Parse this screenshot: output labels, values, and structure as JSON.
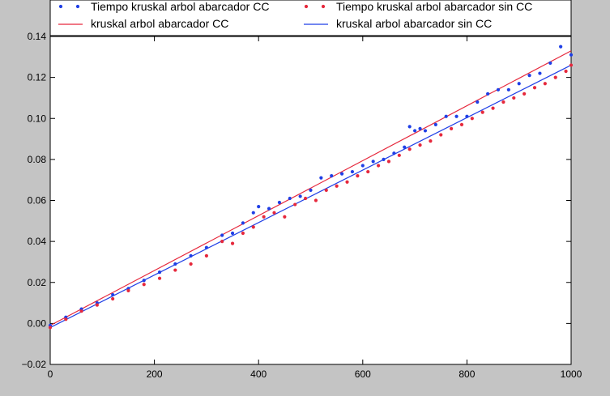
{
  "chart_data": {
    "type": "scatter",
    "xlim": [
      0,
      1000
    ],
    "ylim": [
      -0.02,
      0.14
    ],
    "x_ticks": [
      0,
      200,
      400,
      600,
      800,
      1000
    ],
    "y_ticks": [
      -0.02,
      0.0,
      0.02,
      0.04,
      0.06,
      0.08,
      0.1,
      0.12,
      0.14
    ],
    "x_tick_labels": [
      "0",
      "200",
      "400",
      "600",
      "800",
      "1000"
    ],
    "y_tick_labels": [
      "−0.02",
      "0.00",
      "0.02",
      "0.04",
      "0.06",
      "0.08",
      "0.10",
      "0.12",
      "0.14"
    ],
    "grid": false,
    "legend_position": "top",
    "series": [
      {
        "name": "Tiempo kruskal arbol abarcador CC",
        "kind": "points",
        "color": "#1f3fe6",
        "x": [
          0,
          30,
          60,
          90,
          120,
          150,
          180,
          210,
          240,
          270,
          300,
          330,
          350,
          370,
          390,
          400,
          420,
          440,
          460,
          480,
          500,
          520,
          540,
          560,
          580,
          600,
          620,
          640,
          660,
          680,
          690,
          700,
          710,
          720,
          740,
          760,
          780,
          800,
          820,
          840,
          860,
          880,
          900,
          920,
          940,
          960,
          980,
          1000
        ],
        "y": [
          -0.001,
          0.003,
          0.007,
          0.01,
          0.014,
          0.017,
          0.021,
          0.025,
          0.029,
          0.033,
          0.037,
          0.043,
          0.044,
          0.049,
          0.054,
          0.057,
          0.056,
          0.059,
          0.061,
          0.062,
          0.065,
          0.071,
          0.072,
          0.073,
          0.074,
          0.077,
          0.079,
          0.08,
          0.083,
          0.086,
          0.096,
          0.094,
          0.095,
          0.094,
          0.097,
          0.101,
          0.101,
          0.101,
          0.108,
          0.112,
          0.114,
          0.114,
          0.117,
          0.121,
          0.122,
          0.127,
          0.135,
          0.131
        ]
      },
      {
        "name": "Tiempo kruskal arbol abarcador sin CC",
        "kind": "points",
        "color": "#e6283c",
        "x": [
          0,
          30,
          60,
          90,
          120,
          150,
          180,
          210,
          240,
          270,
          300,
          330,
          350,
          370,
          390,
          410,
          430,
          450,
          470,
          490,
          510,
          530,
          550,
          570,
          590,
          610,
          630,
          650,
          670,
          690,
          710,
          730,
          750,
          770,
          790,
          810,
          830,
          850,
          870,
          890,
          910,
          930,
          950,
          970,
          990,
          1000
        ],
        "y": [
          -0.002,
          0.002,
          0.006,
          0.009,
          0.012,
          0.016,
          0.019,
          0.022,
          0.026,
          0.029,
          0.033,
          0.04,
          0.039,
          0.044,
          0.047,
          0.052,
          0.054,
          0.052,
          0.058,
          0.061,
          0.06,
          0.065,
          0.067,
          0.069,
          0.072,
          0.074,
          0.077,
          0.079,
          0.082,
          0.085,
          0.087,
          0.089,
          0.092,
          0.095,
          0.097,
          0.1,
          0.103,
          0.105,
          0.108,
          0.11,
          0.112,
          0.115,
          0.117,
          0.12,
          0.123,
          0.126
        ]
      },
      {
        "name": "kruskal arbol abarcador CC",
        "kind": "line",
        "color": "#e6283c",
        "x": [
          0,
          1000
        ],
        "y": [
          -0.001,
          0.133
        ]
      },
      {
        "name": "kruskal arbol abarcador sin CC",
        "kind": "line",
        "color": "#1f3fe6",
        "x": [
          0,
          1000
        ],
        "y": [
          -0.002,
          0.126
        ]
      }
    ]
  }
}
